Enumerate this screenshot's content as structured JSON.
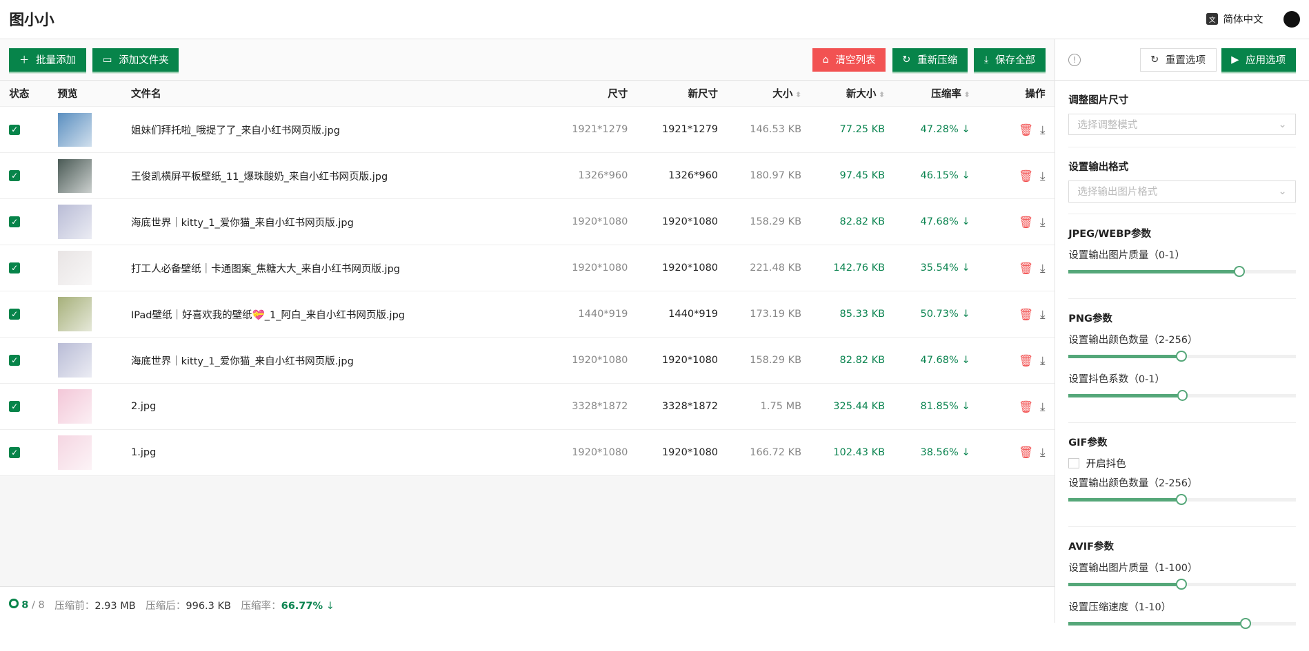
{
  "app": {
    "title": "图小小",
    "language": "简体中文"
  },
  "toolbar": {
    "add_batch": "批量添加",
    "add_folder": "添加文件夹",
    "clear": "清空列表",
    "recompress": "重新压缩",
    "save_all": "保存全部"
  },
  "columns": [
    "状态",
    "预览",
    "文件名",
    "尺寸",
    "新尺寸",
    "大小",
    "新大小",
    "压缩率",
    "操作"
  ],
  "rows": [
    {
      "name": "姐妹们拜托啦_哦提了了_来自小红书网页版.jpg",
      "dim": "1921*1279",
      "newdim": "1921*1279",
      "size": "146.53 KB",
      "newsize": "77.25 KB",
      "rate": "47.28%",
      "thumb": "#5b8fc0"
    },
    {
      "name": "王俊凯横屏平板壁纸_11_爆珠酸奶_来自小红书网页版.jpg",
      "dim": "1326*960",
      "newdim": "1326*960",
      "size": "180.97 KB",
      "newsize": "97.45 KB",
      "rate": "46.15%",
      "thumb": "#4a5a55"
    },
    {
      "name": "海底世界｜kitty_1_爱你猫_来自小红书网页版.jpg",
      "dim": "1920*1080",
      "newdim": "1920*1080",
      "size": "158.29 KB",
      "newsize": "82.82 KB",
      "rate": "47.68%",
      "thumb": "#b9bcd6"
    },
    {
      "name": "打工人必备壁纸｜卡通图案_焦糖大大_来自小红书网页版.jpg",
      "dim": "1920*1080",
      "newdim": "1920*1080",
      "size": "221.48 KB",
      "newsize": "142.76 KB",
      "rate": "35.54%",
      "thumb": "#e8e4e4"
    },
    {
      "name": "IPad壁纸｜好喜欢我的壁纸💝_1_阿白_来自小红书网页版.jpg",
      "dim": "1440*919",
      "newdim": "1440*919",
      "size": "173.19 KB",
      "newsize": "85.33 KB",
      "rate": "50.73%",
      "thumb": "#a6b07a"
    },
    {
      "name": "海底世界｜kitty_1_爱你猫_来自小红书网页版.jpg",
      "dim": "1920*1080",
      "newdim": "1920*1080",
      "size": "158.29 KB",
      "newsize": "82.82 KB",
      "rate": "47.68%",
      "thumb": "#b9bcd6"
    },
    {
      "name": "2.jpg",
      "dim": "3328*1872",
      "newdim": "3328*1872",
      "size": "1.75 MB",
      "newsize": "325.44 KB",
      "rate": "81.85%",
      "thumb": "#f3c7d8"
    },
    {
      "name": "1.jpg",
      "dim": "1920*1080",
      "newdim": "1920*1080",
      "size": "166.72 KB",
      "newsize": "102.43 KB",
      "rate": "38.56%",
      "thumb": "#f5d6e2"
    }
  ],
  "footer": {
    "done": "8",
    "total": "/ 8",
    "before_label": "压缩前：",
    "before": "2.93 MB",
    "after_label": "压缩后：",
    "after": "996.3 KB",
    "rate_label": "压缩率：",
    "rate": "66.77%"
  },
  "panel": {
    "reset": "重置选项",
    "apply": "应用选项",
    "resize": {
      "title": "调整图片尺寸",
      "placeholder": "选择调整模式"
    },
    "format": {
      "title": "设置输出格式",
      "placeholder": "选择输出图片格式"
    },
    "jpeg": {
      "title": "JPEG/WEBP参数",
      "quality_label": "设置输出图片质量（0-1）",
      "quality": 0.75
    },
    "png": {
      "title": "PNG参数",
      "colors_label": "设置输出颜色数量（2-256）",
      "colors": 128,
      "dither_label": "设置抖色系数（0-1）",
      "dither": 0.5
    },
    "gif": {
      "title": "GIF参数",
      "dither_label": "开启抖色",
      "dither_checked": false,
      "colors_label": "设置输出颜色数量（2-256）",
      "colors": 128
    },
    "avif": {
      "title": "AVIF参数",
      "quality_label": "设置输出图片质量（1-100）",
      "quality": 50,
      "speed_label": "设置压缩速度（1-10）",
      "speed": 8
    }
  },
  "colors": {
    "accent": "#07844a",
    "danger": "#f25252",
    "slider": "#55a779"
  }
}
